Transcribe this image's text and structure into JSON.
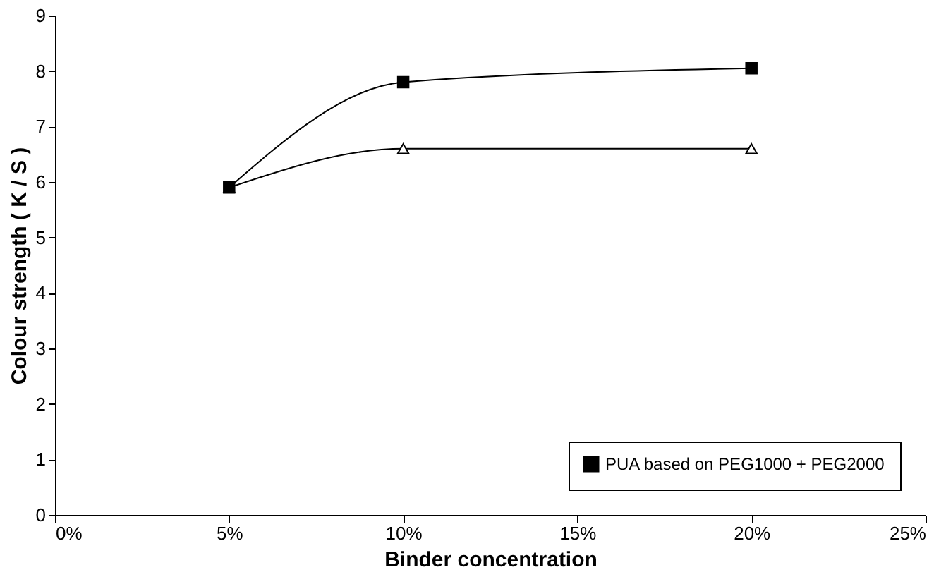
{
  "chart_data": {
    "type": "line",
    "xlabel": "Binder concentration",
    "ylabel": "Colour strength ( K / S )",
    "x": [
      5,
      10,
      20
    ],
    "series": [
      {
        "color": "#000000",
        "marker": "triangle",
        "values": [
          5.9,
          6.6,
          6.6
        ]
      },
      {
        "name": "PUA based on PEG1000 + PEG2000",
        "color": "#000000",
        "marker": "square",
        "values": [
          5.9,
          7.8,
          8.05
        ]
      }
    ],
    "xlim": [
      0,
      25
    ],
    "ylim": [
      0,
      9
    ],
    "xticks": [
      {
        "value": 0,
        "label": "0%"
      },
      {
        "value": 5,
        "label": "5%"
      },
      {
        "value": 10,
        "label": "10%"
      },
      {
        "value": 15,
        "label": "15%"
      },
      {
        "value": 20,
        "label": "20%"
      },
      {
        "value": 25,
        "label": "25%"
      }
    ],
    "yticks": [
      0,
      1,
      2,
      3,
      4,
      5,
      6,
      7,
      8,
      9
    ],
    "grid": false,
    "legend": "bottom right",
    "line_style": "solid"
  }
}
